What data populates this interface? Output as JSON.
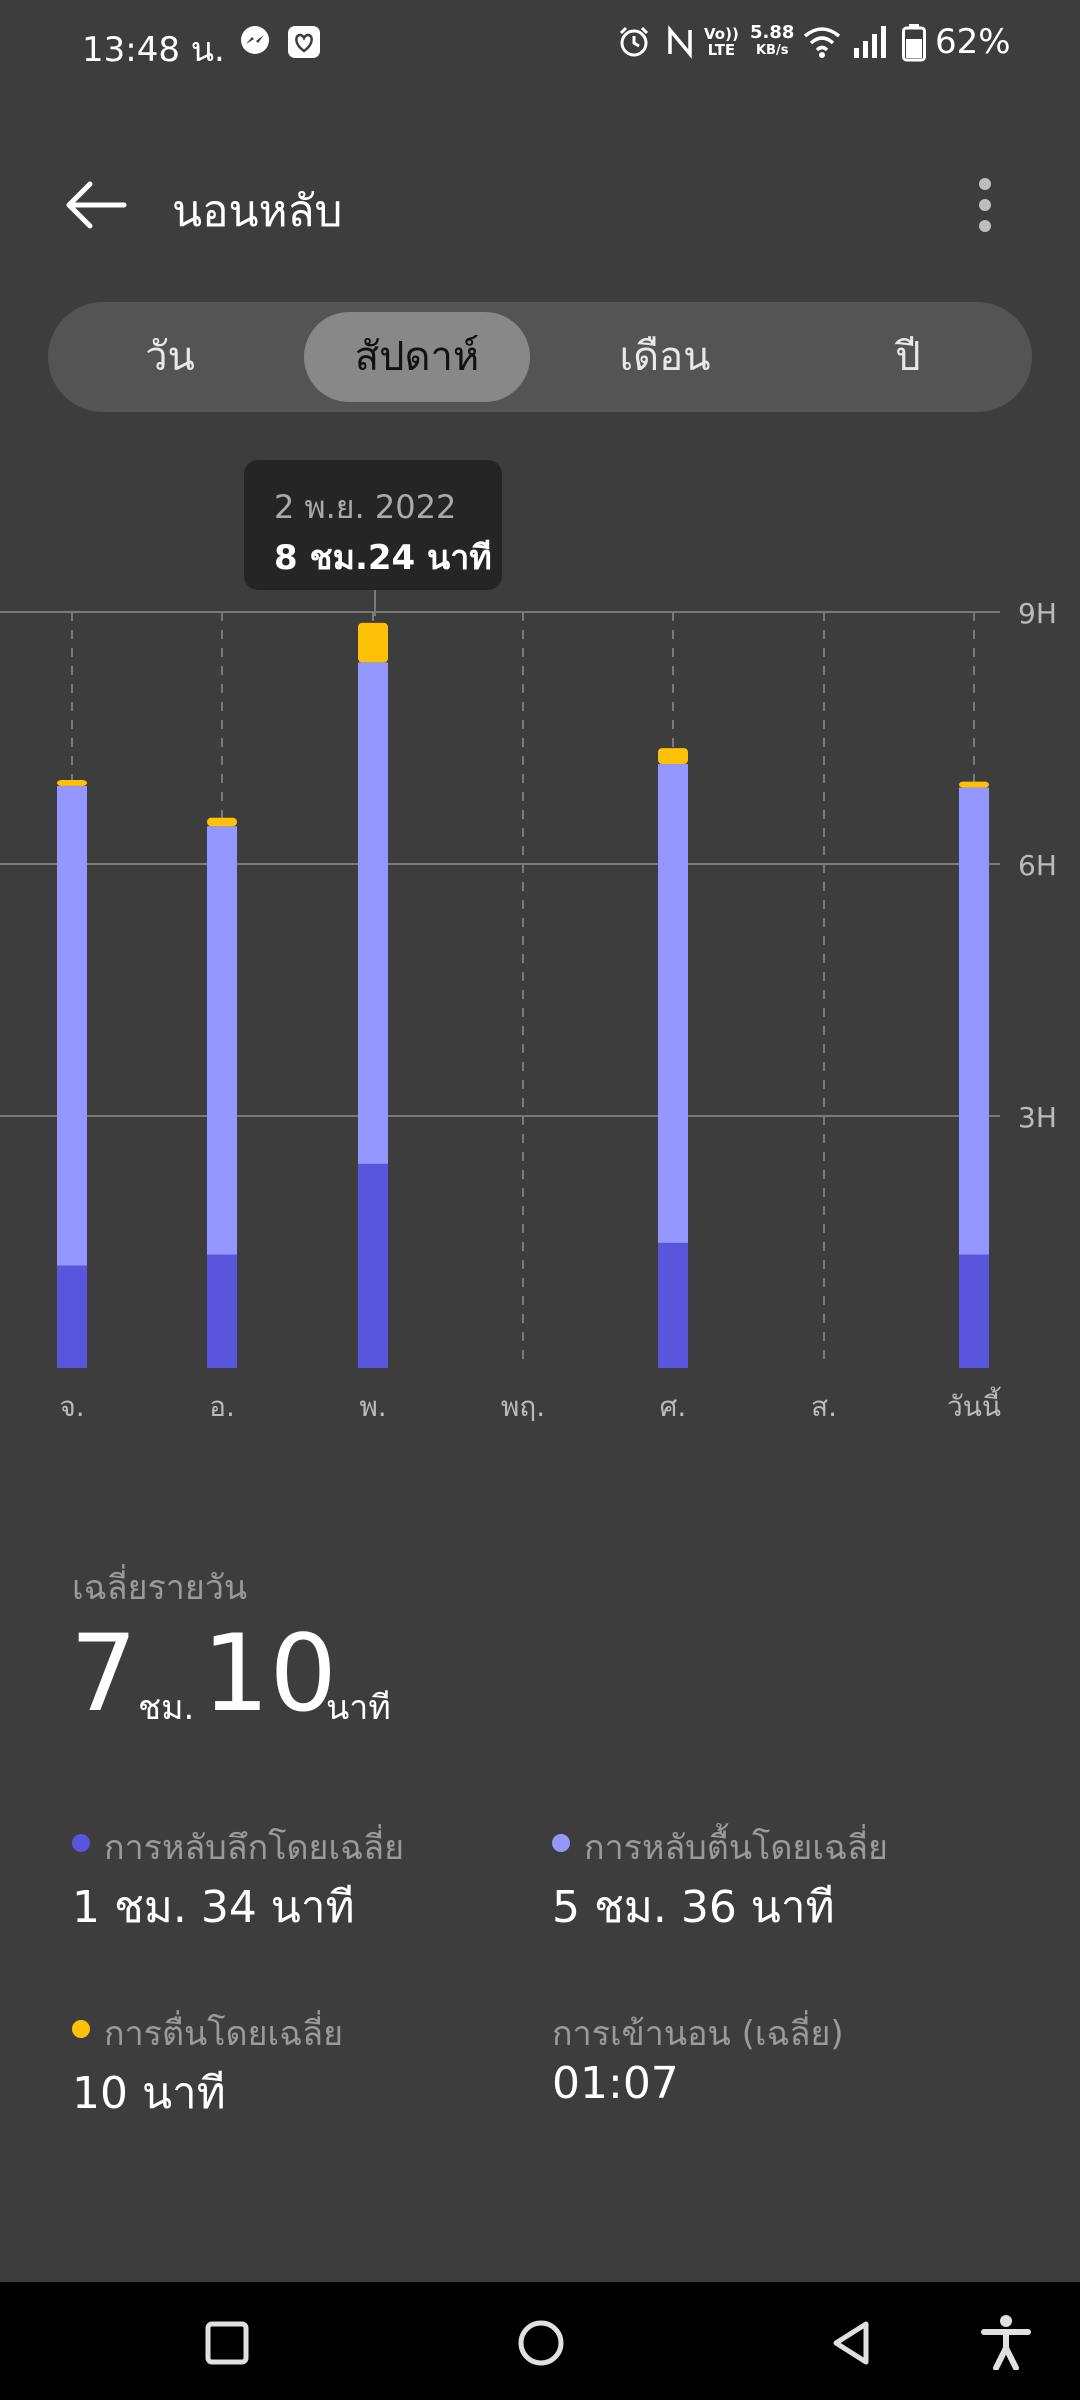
{
  "status_bar": {
    "time": "13:48 น.",
    "network_speed_value": "5.88",
    "network_speed_unit": "KB/s",
    "volte_top": "Vo))",
    "volte_bottom": "LTE",
    "battery": "62%"
  },
  "app_bar": {
    "title": "นอนหลับ"
  },
  "tabs": [
    {
      "label": "วัน",
      "selected": false
    },
    {
      "label": "สัปดาห์",
      "selected": true
    },
    {
      "label": "เดือน",
      "selected": false
    },
    {
      "label": "ปี",
      "selected": false
    }
  ],
  "tooltip": {
    "date": "2 พ.ย. 2022",
    "value": "8 ชม.24 นาที"
  },
  "colors": {
    "deep": "#5a55dd",
    "light": "#9497ff",
    "awake": "#ffc107",
    "grid": "#7a7a7a",
    "axis_text": "#bbbbbb"
  },
  "chart_data": {
    "type": "bar",
    "stacked": true,
    "y_unit": "hours",
    "ylim": [
      0,
      9
    ],
    "y_ticks": [
      {
        "value": 3,
        "label": "3H"
      },
      {
        "value": 6,
        "label": "6H"
      },
      {
        "value": 9,
        "label": "9H"
      }
    ],
    "categories": [
      "จ.",
      "อ.",
      "พ.",
      "พฤ.",
      "ศ.",
      "ส.",
      "วันนี้"
    ],
    "series": [
      {
        "key": "deep",
        "values": [
          1.22,
          1.35,
          2.43,
          0,
          1.49,
          0,
          1.35
        ]
      },
      {
        "key": "light",
        "values": [
          5.71,
          5.1,
          5.97,
          0,
          5.7,
          0,
          5.56
        ]
      },
      {
        "key": "awake",
        "values": [
          0.07,
          0.1,
          0.47,
          0,
          0.19,
          0,
          0.07
        ]
      }
    ]
  },
  "summary": {
    "avg_label": "เฉลี่ยรายวัน",
    "avg_hours": "7",
    "avg_hours_unit": "ชม.",
    "avg_minutes": "10",
    "avg_minutes_unit": "นาที"
  },
  "stats": [
    {
      "label": "การหลับลึกโดยเฉลี่ย",
      "value": "1 ชม. 34 นาที",
      "color": "#5a55dd"
    },
    {
      "label": "การหลับตื้นโดยเฉลี่ย",
      "value": "5 ชม. 36 นาที",
      "color": "#9497ff"
    },
    {
      "label": "การตื่นโดยเฉลี่ย",
      "value": "10 นาที",
      "color": "#ffc107"
    },
    {
      "label": "การเข้านอน (เฉลี่ย)",
      "value": "01:07",
      "color": ""
    }
  ]
}
